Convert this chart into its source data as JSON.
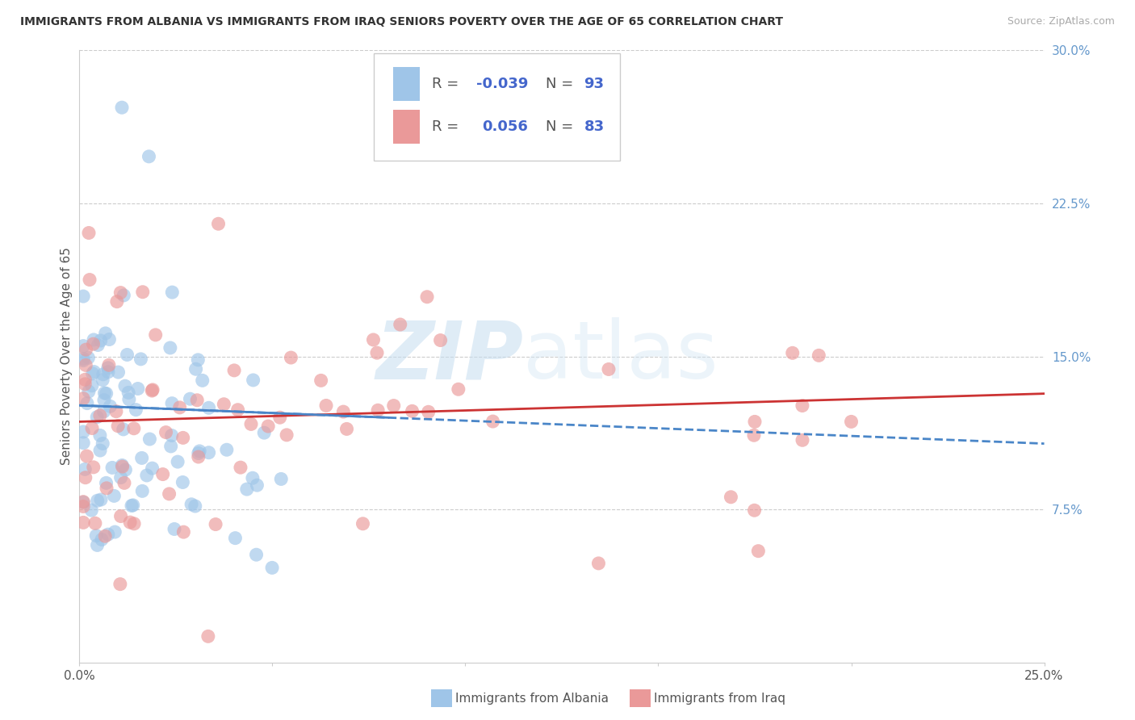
{
  "title": "IMMIGRANTS FROM ALBANIA VS IMMIGRANTS FROM IRAQ SENIORS POVERTY OVER THE AGE OF 65 CORRELATION CHART",
  "source": "Source: ZipAtlas.com",
  "ylabel": "Seniors Poverty Over the Age of 65",
  "xlim": [
    0.0,
    0.25
  ],
  "ylim": [
    0.0,
    0.3
  ],
  "yticks_right": [
    0.0,
    0.075,
    0.15,
    0.225,
    0.3
  ],
  "yticklabels_right": [
    "",
    "7.5%",
    "15.0%",
    "22.5%",
    "30.0%"
  ],
  "xtick_positions": [
    0.0,
    0.05,
    0.1,
    0.15,
    0.2,
    0.25
  ],
  "xtick_labels": [
    "0.0%",
    "",
    "",
    "",
    "",
    "25.0%"
  ],
  "albania_R": -0.039,
  "albania_N": 93,
  "iraq_R": 0.056,
  "iraq_N": 83,
  "color_albania": "#9fc5e8",
  "color_iraq": "#ea9999",
  "color_albania_line": "#4a86c8",
  "color_iraq_line": "#cc3333",
  "grid_color": "#cccccc",
  "title_fontsize": 10,
  "label_fontsize": 11,
  "tick_fontsize": 11,
  "right_tick_color": "#6699cc",
  "legend_text_color": "#555555",
  "legend_value_color": "#4466cc"
}
